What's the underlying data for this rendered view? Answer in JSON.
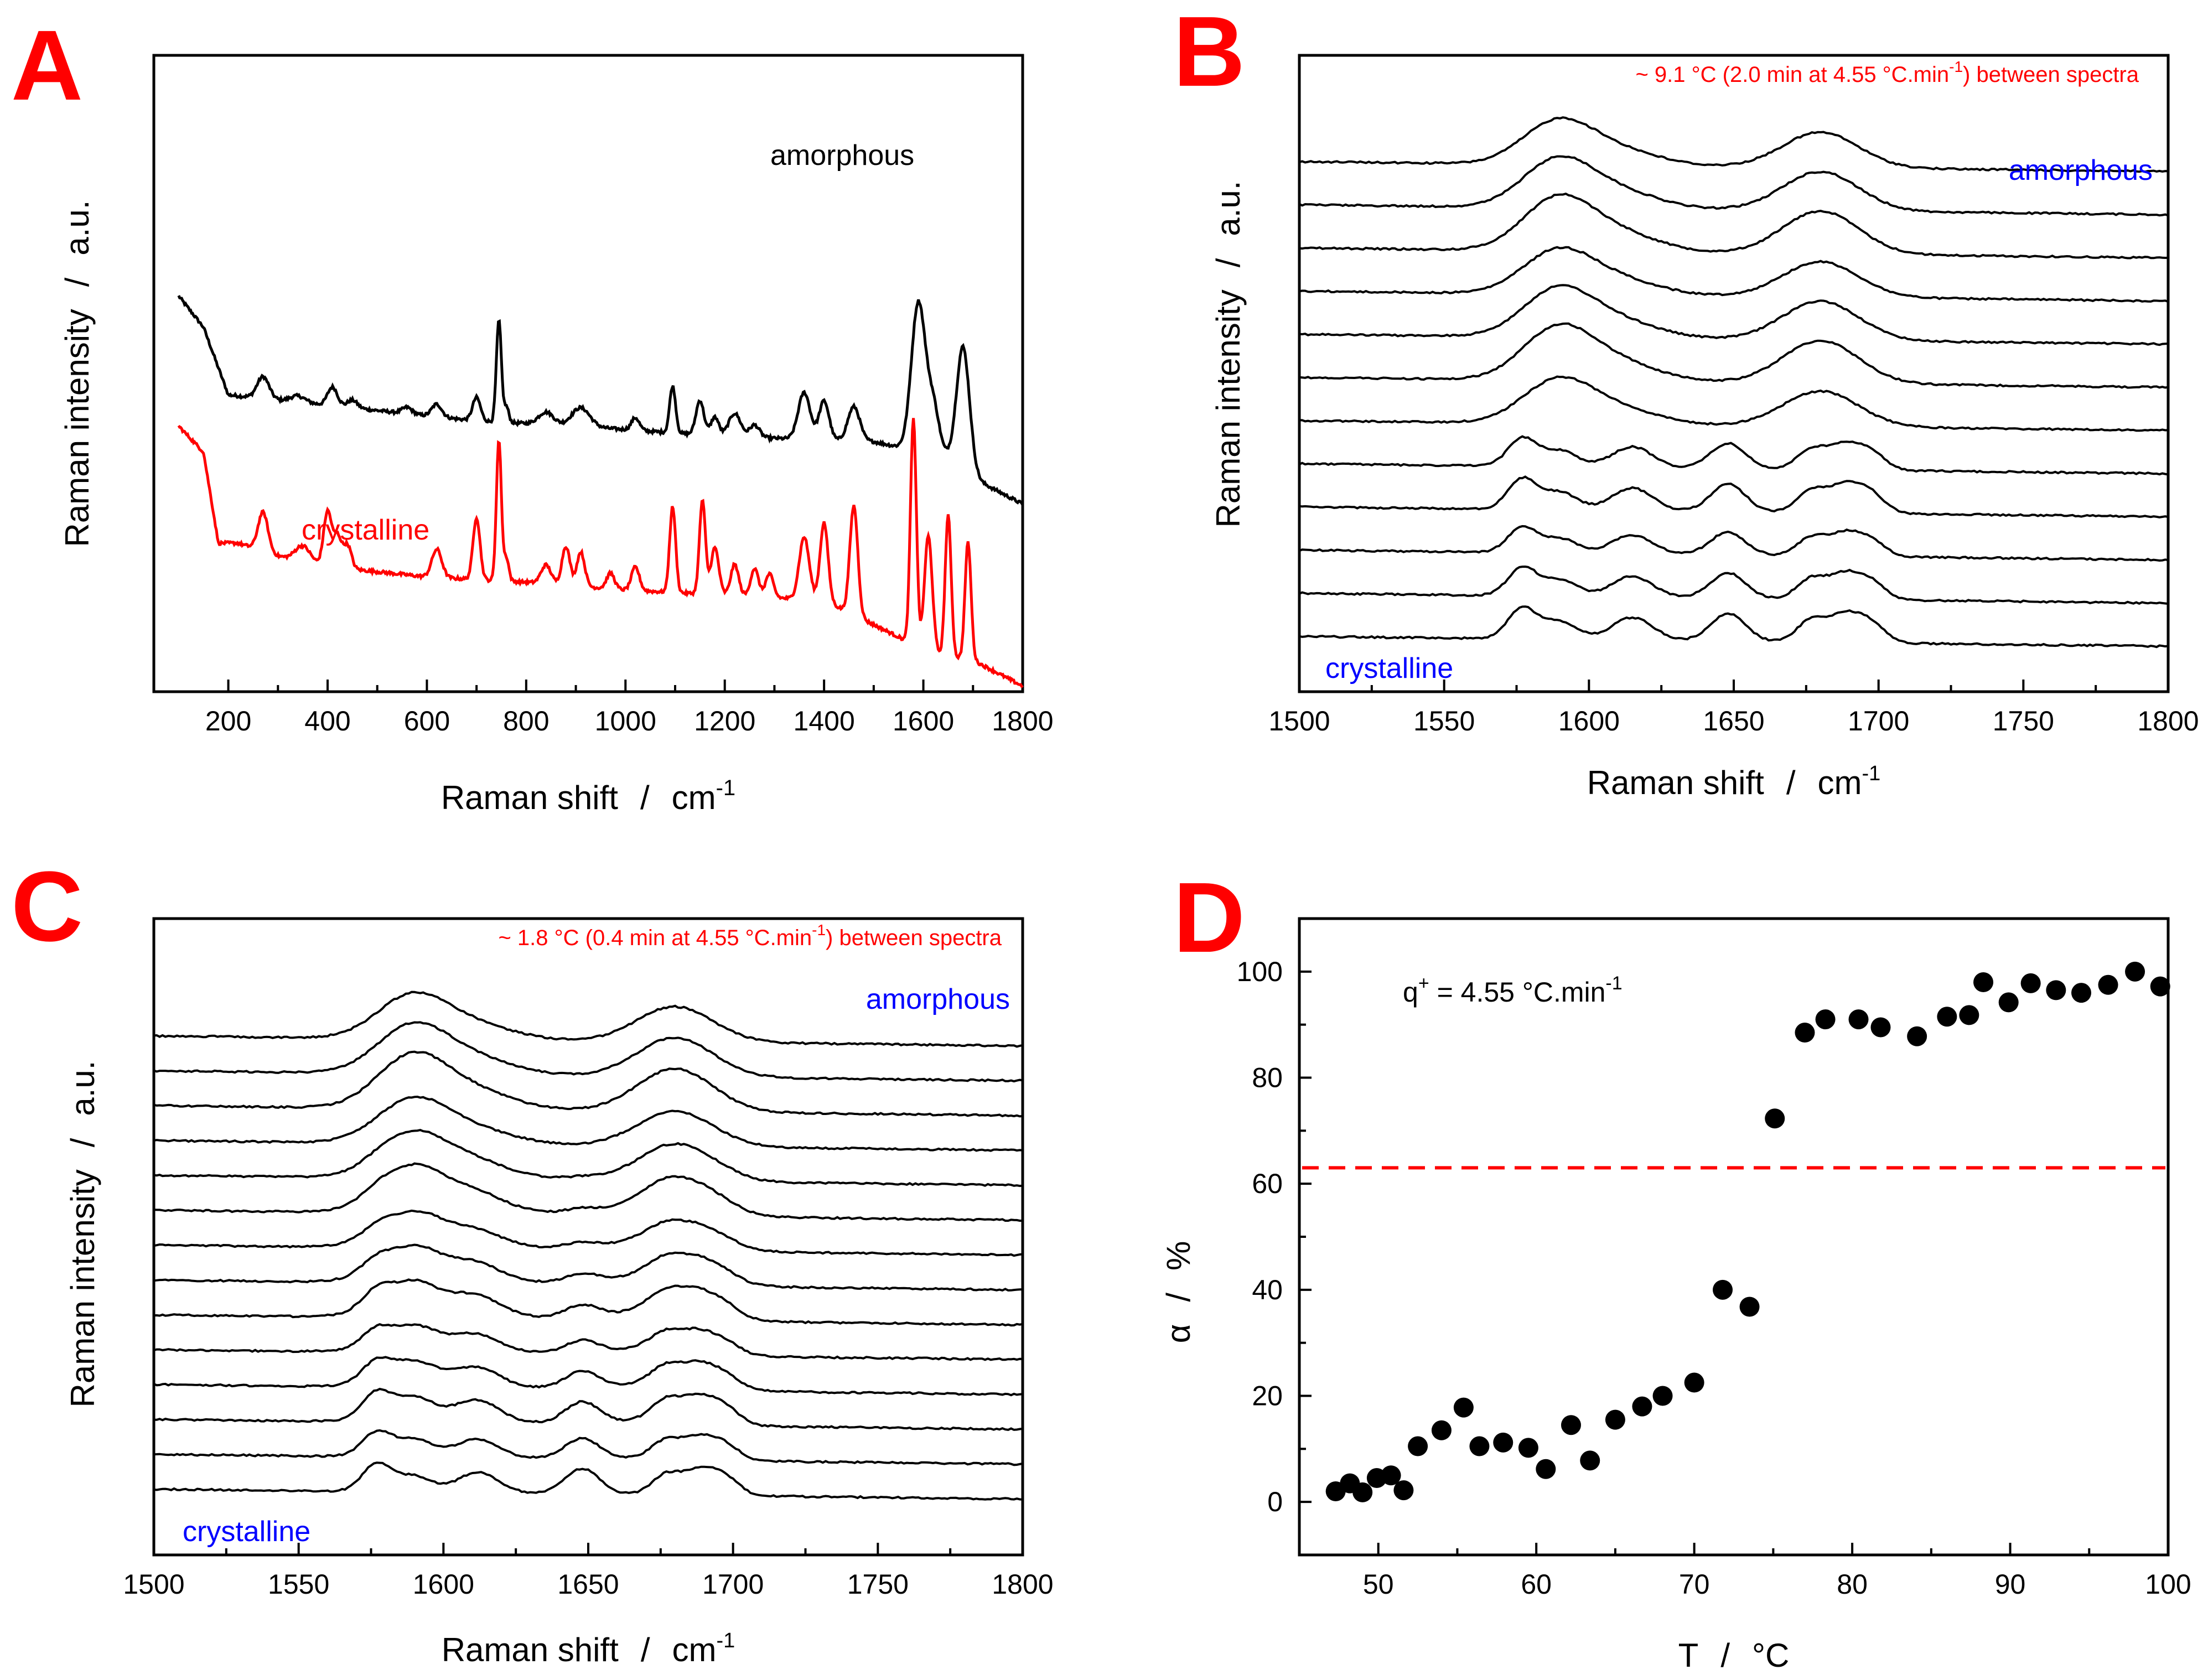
{
  "chart_data": [
    {
      "panel": "A",
      "type": "line",
      "xlabel": "Raman shift",
      "xunit": "cm",
      "xunit_sup": "-1",
      "ylabel": "Raman intensity",
      "yunit": "a.u.",
      "xlim": [
        50,
        1800
      ],
      "xticks": [
        200,
        400,
        600,
        800,
        1000,
        1200,
        1400,
        1600,
        1800
      ],
      "series": [
        {
          "name": "amorphous",
          "label": "amorphous",
          "color": "#000000",
          "offset": 0.5,
          "baseline": [
            [
              100,
              1.0
            ],
            [
              150,
              0.88
            ],
            [
              200,
              0.62
            ],
            [
              300,
              0.6
            ],
            [
              500,
              0.56
            ],
            [
              700,
              0.52
            ],
            [
              900,
              0.5
            ],
            [
              1200,
              0.46
            ],
            [
              1500,
              0.44
            ],
            [
              1650,
              0.38
            ],
            [
              1720,
              0.28
            ],
            [
              1800,
              0.2
            ]
          ],
          "peaks": [
            [
              270,
              0.14,
              12
            ],
            [
              340,
              0.04,
              15
            ],
            [
              410,
              0.12,
              10
            ],
            [
              450,
              0.05,
              10
            ],
            [
              560,
              0.04,
              10
            ],
            [
              620,
              0.08,
              10
            ],
            [
              700,
              0.15,
              8
            ],
            [
              745,
              0.65,
              5
            ],
            [
              760,
              0.1,
              5
            ],
            [
              840,
              0.08,
              15
            ],
            [
              910,
              0.12,
              18
            ],
            [
              1020,
              0.08,
              8
            ],
            [
              1095,
              0.3,
              6
            ],
            [
              1150,
              0.22,
              8
            ],
            [
              1180,
              0.12,
              8
            ],
            [
              1220,
              0.15,
              12
            ],
            [
              1260,
              0.08,
              10
            ],
            [
              1360,
              0.3,
              12
            ],
            [
              1400,
              0.25,
              10
            ],
            [
              1460,
              0.22,
              12
            ],
            [
              1590,
              0.95,
              14
            ],
            [
              1620,
              0.3,
              12
            ],
            [
              1680,
              0.78,
              13
            ]
          ]
        },
        {
          "name": "crystalline",
          "label": "crystalline",
          "color": "#ff0000",
          "offset": 0.0,
          "baseline": [
            [
              100,
              1.0
            ],
            [
              150,
              0.9
            ],
            [
              180,
              0.55
            ],
            [
              220,
              0.55
            ],
            [
              300,
              0.5
            ],
            [
              400,
              0.46
            ],
            [
              600,
              0.42
            ],
            [
              800,
              0.4
            ],
            [
              1000,
              0.37
            ],
            [
              1200,
              0.35
            ],
            [
              1400,
              0.33
            ],
            [
              1560,
              0.18
            ],
            [
              1600,
              0.13
            ],
            [
              1700,
              0.1
            ],
            [
              1800,
              0.0
            ]
          ],
          "peaks": [
            [
              270,
              0.25,
              10
            ],
            [
              350,
              0.1,
              15
            ],
            [
              400,
              0.35,
              8
            ],
            [
              420,
              0.2,
              8
            ],
            [
              440,
              0.15,
              8
            ],
            [
              620,
              0.18,
              10
            ],
            [
              700,
              0.4,
              7
            ],
            [
              745,
              0.9,
              5
            ],
            [
              760,
              0.15,
              5
            ],
            [
              840,
              0.12,
              10
            ],
            [
              880,
              0.25,
              8
            ],
            [
              910,
              0.22,
              8
            ],
            [
              970,
              0.1,
              8
            ],
            [
              1020,
              0.15,
              8
            ],
            [
              1095,
              0.55,
              6
            ],
            [
              1155,
              0.6,
              6
            ],
            [
              1180,
              0.3,
              8
            ],
            [
              1220,
              0.2,
              8
            ],
            [
              1260,
              0.18,
              8
            ],
            [
              1290,
              0.15,
              8
            ],
            [
              1360,
              0.4,
              10
            ],
            [
              1400,
              0.5,
              8
            ],
            [
              1460,
              0.7,
              8
            ],
            [
              1580,
              1.45,
              6
            ],
            [
              1610,
              0.75,
              8
            ],
            [
              1650,
              0.9,
              6
            ],
            [
              1690,
              0.75,
              6
            ]
          ]
        }
      ]
    },
    {
      "panel": "B",
      "type": "line",
      "xlabel": "Raman shift",
      "xunit": "cm",
      "xunit_sup": "-1",
      "ylabel": "Raman intensity",
      "yunit": "a.u.",
      "xlim": [
        1500,
        1800
      ],
      "xticks": [
        1500,
        1550,
        1600,
        1650,
        1700,
        1750,
        1800
      ],
      "annotation_prefix": "~ 9.1 °C (2.0 min at 4.55 °C.min",
      "annotation_sup": "-1",
      "annotation_suffix": ") between spectra",
      "label_top": "amorphous",
      "label_bottom": "crystalline",
      "n_spectra": 12,
      "amorphous_count": 7,
      "amorphous_shape": [
        [
          1589,
          1.0,
          12
        ],
        [
          1610,
          0.35,
          14
        ],
        [
          1680,
          0.85,
          13
        ]
      ],
      "crystalline_shape": [
        [
          1577,
          0.6,
          5
        ],
        [
          1590,
          0.35,
          6
        ],
        [
          1615,
          0.45,
          7
        ],
        [
          1648,
          0.55,
          6
        ],
        [
          1677,
          0.45,
          5
        ],
        [
          1688,
          0.5,
          5
        ],
        [
          1697,
          0.4,
          5
        ]
      ]
    },
    {
      "panel": "C",
      "type": "line",
      "xlabel": "Raman shift",
      "xunit": "cm",
      "xunit_sup": "-1",
      "ylabel": "Raman intensity",
      "yunit": "a.u.",
      "xlim": [
        1500,
        1800
      ],
      "xticks": [
        1500,
        1550,
        1600,
        1650,
        1700,
        1750,
        1800
      ],
      "annotation_prefix": "~ 1.8 °C (0.4 min at 4.55 °C.min",
      "annotation_sup": "-1",
      "annotation_suffix": ") between spectra",
      "label_top": "amorphous",
      "label_bottom": "crystalline",
      "n_spectra": 14,
      "amorphous_shape": [
        [
          1589,
          1.0,
          12
        ],
        [
          1610,
          0.35,
          14
        ],
        [
          1680,
          0.85,
          13
        ]
      ],
      "crystalline_shape": [
        [
          1577,
          0.6,
          5
        ],
        [
          1590,
          0.35,
          6
        ],
        [
          1612,
          0.45,
          7
        ],
        [
          1648,
          0.55,
          6
        ],
        [
          1677,
          0.45,
          5
        ],
        [
          1688,
          0.5,
          5
        ],
        [
          1697,
          0.4,
          5
        ]
      ]
    },
    {
      "panel": "D",
      "type": "scatter",
      "xlabel": "T",
      "xunit": "°C",
      "ylabel": "α",
      "yunit": "%",
      "xlim": [
        45,
        100
      ],
      "ylim": [
        -10,
        110
      ],
      "xticks": [
        50,
        60,
        70,
        80,
        90,
        100
      ],
      "yticks": [
        0,
        20,
        40,
        60,
        80,
        100
      ],
      "annotation_prefix": "q",
      "annotation_sup": "+",
      "annotation_suffix": " = 4.55 °C.min",
      "annotation_sup2": "-1",
      "hline": {
        "y": 63,
        "color": "#ff0000",
        "style": "dashed"
      },
      "points": [
        [
          47.3,
          2
        ],
        [
          48.2,
          3.5
        ],
        [
          49.0,
          1.8
        ],
        [
          49.9,
          4.5
        ],
        [
          50.8,
          5
        ],
        [
          51.6,
          2.2
        ],
        [
          52.5,
          10.5
        ],
        [
          54.0,
          13.5
        ],
        [
          55.4,
          17.8
        ],
        [
          56.4,
          10.5
        ],
        [
          57.9,
          11.2
        ],
        [
          59.5,
          10.2
        ],
        [
          60.6,
          6.2
        ],
        [
          62.2,
          14.5
        ],
        [
          63.4,
          7.8
        ],
        [
          65.0,
          15.5
        ],
        [
          66.7,
          18
        ],
        [
          68.0,
          20
        ],
        [
          70.0,
          22.5
        ],
        [
          71.8,
          40
        ],
        [
          73.5,
          36.8
        ],
        [
          75.1,
          72.3
        ],
        [
          77.0,
          88.5
        ],
        [
          78.3,
          91
        ],
        [
          80.4,
          91
        ],
        [
          81.8,
          89.5
        ],
        [
          84.1,
          87.8
        ],
        [
          86.0,
          91.5
        ],
        [
          87.4,
          91.8
        ],
        [
          88.3,
          98
        ],
        [
          89.9,
          94.2
        ],
        [
          91.3,
          97.8
        ],
        [
          92.9,
          96.5
        ],
        [
          94.5,
          96
        ],
        [
          96.2,
          97.5
        ],
        [
          97.9,
          100
        ],
        [
          99.5,
          97.2
        ]
      ]
    }
  ]
}
